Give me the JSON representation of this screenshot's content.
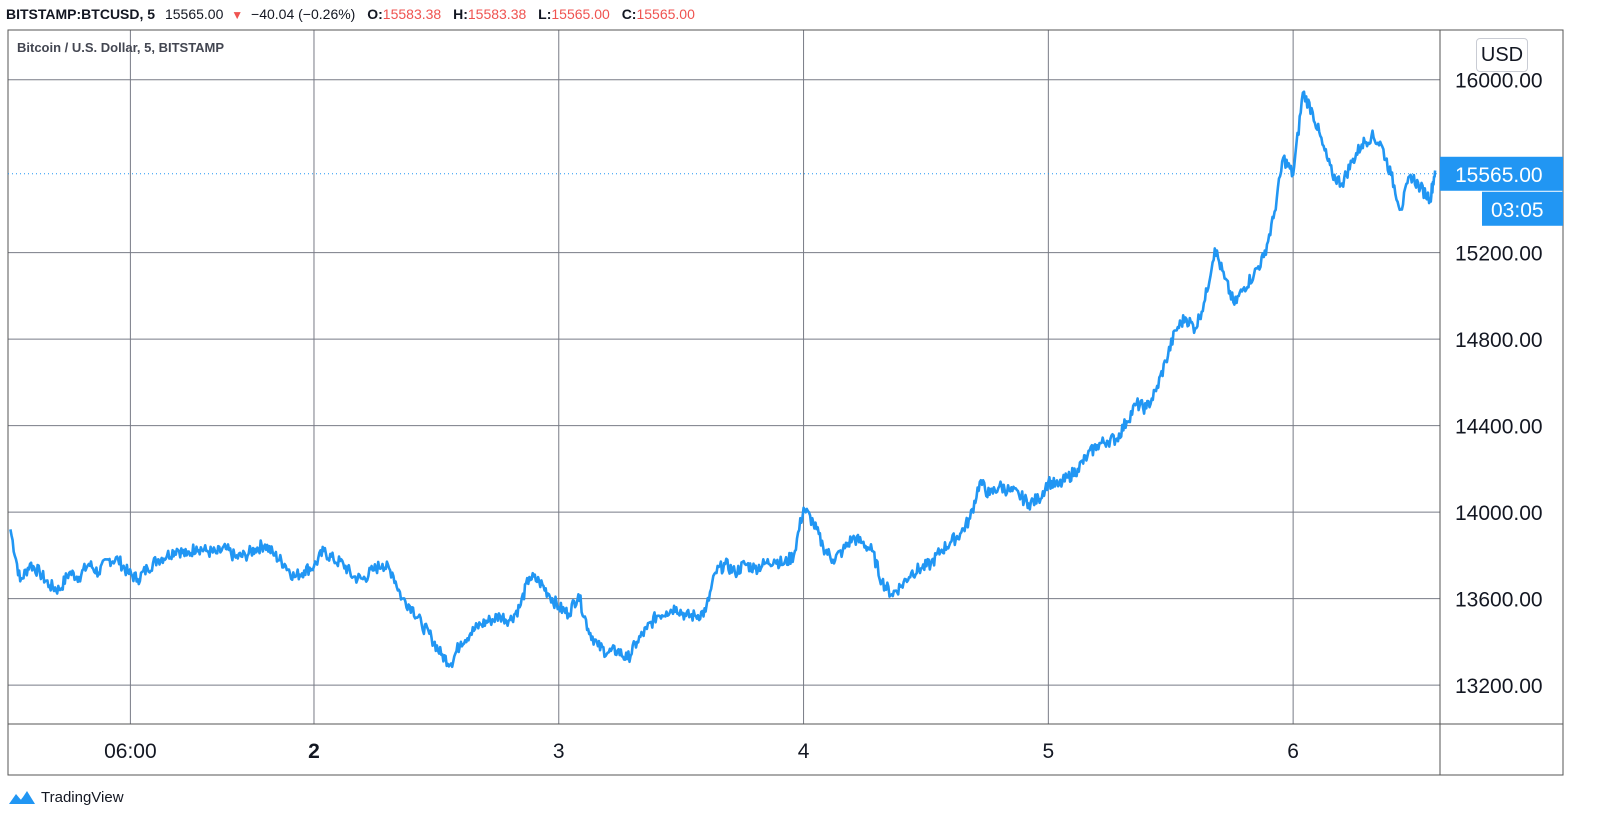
{
  "header": {
    "symbol": "BITSTAMP:BTCUSD, 5",
    "last": "15565.00",
    "change": "−40.04 (−0.26%)",
    "open_label": "O:",
    "open": "15583.38",
    "high_label": "H:",
    "high": "15583.38",
    "low_label": "L:",
    "low": "15565.00",
    "close_label": "C:",
    "close": "15565.00",
    "change_direction": "down"
  },
  "legend": {
    "title": "Bitcoin / U.S. Dollar, 5, BITSTAMP"
  },
  "currency_button": "USD",
  "price_tag": {
    "value": "15565.00",
    "countdown": "03:05"
  },
  "branding": {
    "name": "TradingView"
  },
  "colors": {
    "line": "#2196f3",
    "grid": "#787b86",
    "down": "#ef5350",
    "tag": "#2196f3"
  },
  "chart_data": {
    "type": "line",
    "title": "Bitcoin / U.S. Dollar, 5, BITSTAMP",
    "xlabel": "",
    "ylabel": "",
    "ylim": [
      13020,
      16230
    ],
    "xlim": [
      0.75,
      6.6
    ],
    "grid": true,
    "y_ticks": [
      13200,
      13600,
      14000,
      14400,
      14800,
      15200,
      16000
    ],
    "y_tick_labels": [
      "13200.00",
      "13600.00",
      "14000.00",
      "14400.00",
      "14800.00",
      "15200.00",
      "16000.00"
    ],
    "x_ticks": [
      {
        "x": 1.25,
        "label": "06:00"
      },
      {
        "x": 2,
        "label": "2"
      },
      {
        "x": 3,
        "label": "3"
      },
      {
        "x": 4,
        "label": "4"
      },
      {
        "x": 5,
        "label": "5"
      },
      {
        "x": 6,
        "label": "6"
      }
    ],
    "series": [
      {
        "values": [
          [
            0.76,
            13920
          ],
          [
            0.8,
            13680
          ],
          [
            0.84,
            13760
          ],
          [
            0.88,
            13720
          ],
          [
            0.92,
            13660
          ],
          [
            0.96,
            13640
          ],
          [
            1.0,
            13720
          ],
          [
            1.04,
            13700
          ],
          [
            1.08,
            13760
          ],
          [
            1.12,
            13720
          ],
          [
            1.16,
            13780
          ],
          [
            1.2,
            13780
          ],
          [
            1.24,
            13720
          ],
          [
            1.28,
            13690
          ],
          [
            1.32,
            13740
          ],
          [
            1.36,
            13780
          ],
          [
            1.4,
            13800
          ],
          [
            1.44,
            13830
          ],
          [
            1.48,
            13800
          ],
          [
            1.52,
            13840
          ],
          [
            1.56,
            13820
          ],
          [
            1.6,
            13810
          ],
          [
            1.64,
            13830
          ],
          [
            1.68,
            13790
          ],
          [
            1.72,
            13800
          ],
          [
            1.76,
            13830
          ],
          [
            1.8,
            13850
          ],
          [
            1.84,
            13800
          ],
          [
            1.88,
            13760
          ],
          [
            1.92,
            13700
          ],
          [
            1.96,
            13730
          ],
          [
            2.0,
            13750
          ],
          [
            2.04,
            13820
          ],
          [
            2.08,
            13780
          ],
          [
            2.12,
            13760
          ],
          [
            2.16,
            13700
          ],
          [
            2.2,
            13690
          ],
          [
            2.24,
            13730
          ],
          [
            2.28,
            13760
          ],
          [
            2.32,
            13720
          ],
          [
            2.36,
            13600
          ],
          [
            2.4,
            13560
          ],
          [
            2.44,
            13480
          ],
          [
            2.48,
            13420
          ],
          [
            2.52,
            13340
          ],
          [
            2.56,
            13300
          ],
          [
            2.6,
            13400
          ],
          [
            2.64,
            13440
          ],
          [
            2.68,
            13480
          ],
          [
            2.72,
            13500
          ],
          [
            2.76,
            13520
          ],
          [
            2.8,
            13500
          ],
          [
            2.84,
            13560
          ],
          [
            2.88,
            13700
          ],
          [
            2.92,
            13680
          ],
          [
            2.96,
            13620
          ],
          [
            3.0,
            13560
          ],
          [
            3.04,
            13530
          ],
          [
            3.08,
            13620
          ],
          [
            3.12,
            13460
          ],
          [
            3.16,
            13380
          ],
          [
            3.2,
            13350
          ],
          [
            3.24,
            13360
          ],
          [
            3.28,
            13320
          ],
          [
            3.32,
            13400
          ],
          [
            3.36,
            13460
          ],
          [
            3.4,
            13520
          ],
          [
            3.44,
            13540
          ],
          [
            3.48,
            13560
          ],
          [
            3.52,
            13520
          ],
          [
            3.56,
            13520
          ],
          [
            3.6,
            13540
          ],
          [
            3.64,
            13720
          ],
          [
            3.68,
            13760
          ],
          [
            3.72,
            13720
          ],
          [
            3.76,
            13760
          ],
          [
            3.8,
            13740
          ],
          [
            3.84,
            13760
          ],
          [
            3.88,
            13780
          ],
          [
            3.92,
            13760
          ],
          [
            3.96,
            13800
          ],
          [
            4.0,
            14020
          ],
          [
            4.04,
            13950
          ],
          [
            4.08,
            13840
          ],
          [
            4.12,
            13780
          ],
          [
            4.16,
            13820
          ],
          [
            4.2,
            13880
          ],
          [
            4.24,
            13860
          ],
          [
            4.28,
            13820
          ],
          [
            4.32,
            13680
          ],
          [
            4.36,
            13620
          ],
          [
            4.4,
            13660
          ],
          [
            4.44,
            13720
          ],
          [
            4.48,
            13740
          ],
          [
            4.52,
            13760
          ],
          [
            4.56,
            13820
          ],
          [
            4.6,
            13860
          ],
          [
            4.64,
            13900
          ],
          [
            4.68,
            13970
          ],
          [
            4.72,
            14140
          ],
          [
            4.76,
            14080
          ],
          [
            4.8,
            14120
          ],
          [
            4.84,
            14100
          ],
          [
            4.88,
            14080
          ],
          [
            4.92,
            14040
          ],
          [
            4.96,
            14060
          ],
          [
            5.0,
            14140
          ],
          [
            5.04,
            14120
          ],
          [
            5.08,
            14160
          ],
          [
            5.12,
            14200
          ],
          [
            5.16,
            14260
          ],
          [
            5.2,
            14310
          ],
          [
            5.24,
            14330
          ],
          [
            5.28,
            14340
          ],
          [
            5.32,
            14420
          ],
          [
            5.36,
            14500
          ],
          [
            5.4,
            14480
          ],
          [
            5.44,
            14560
          ],
          [
            5.48,
            14700
          ],
          [
            5.52,
            14840
          ],
          [
            5.56,
            14900
          ],
          [
            5.6,
            14850
          ],
          [
            5.64,
            14980
          ],
          [
            5.68,
            15220
          ],
          [
            5.72,
            15080
          ],
          [
            5.76,
            14960
          ],
          [
            5.8,
            15040
          ],
          [
            5.84,
            15100
          ],
          [
            5.88,
            15180
          ],
          [
            5.92,
            15360
          ],
          [
            5.96,
            15640
          ],
          [
            6.0,
            15560
          ],
          [
            6.04,
            15940
          ],
          [
            6.08,
            15850
          ],
          [
            6.12,
            15700
          ],
          [
            6.16,
            15560
          ],
          [
            6.2,
            15520
          ],
          [
            6.24,
            15620
          ],
          [
            6.28,
            15700
          ],
          [
            6.32,
            15740
          ],
          [
            6.36,
            15700
          ],
          [
            6.4,
            15560
          ],
          [
            6.44,
            15400
          ],
          [
            6.48,
            15560
          ],
          [
            6.52,
            15500
          ],
          [
            6.56,
            15450
          ],
          [
            6.58,
            15580
          ]
        ]
      }
    ]
  }
}
